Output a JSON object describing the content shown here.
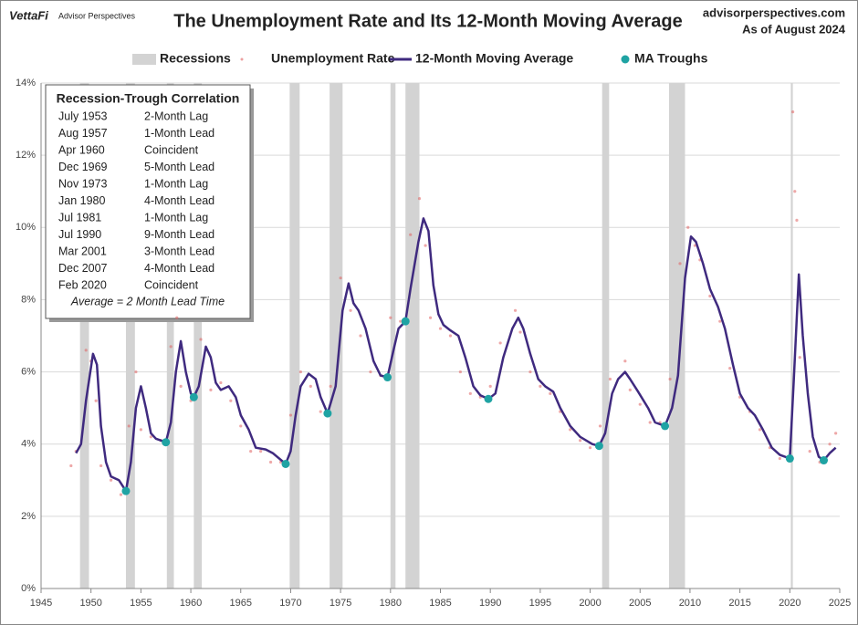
{
  "header": {
    "logo": "VettaFi",
    "logo_sub": "Advisor Perspectives",
    "site": "advisorperspectives.com",
    "date": "As of August 2024"
  },
  "chart_data": {
    "type": "line",
    "title": "The Unemployment Rate and Its 12-Month Moving Average",
    "xlim": [
      1945,
      2025
    ],
    "ylim": [
      0,
      14
    ],
    "xticks": [
      1945,
      1950,
      1955,
      1960,
      1965,
      1970,
      1975,
      1980,
      1985,
      1990,
      1995,
      2000,
      2005,
      2010,
      2015,
      2020,
      2025
    ],
    "yticks": [
      {
        "value": 0,
        "label": "0%"
      },
      {
        "value": 2,
        "label": "2%"
      },
      {
        "value": 4,
        "label": "4%"
      },
      {
        "value": 6,
        "label": "6%"
      },
      {
        "value": 8,
        "label": "8%"
      },
      {
        "value": 10,
        "label": "10%"
      },
      {
        "value": 12,
        "label": "12%"
      },
      {
        "value": 14,
        "label": "14%"
      }
    ],
    "grid": true,
    "recessions": {
      "name": "Recessions",
      "color": "#d3d3d3",
      "ranges": [
        [
          1948.9,
          1949.8
        ],
        [
          1953.5,
          1954.4
        ],
        [
          1957.6,
          1958.3
        ],
        [
          1960.3,
          1961.1
        ],
        [
          1969.9,
          1970.9
        ],
        [
          1973.9,
          1975.2
        ],
        [
          1980.0,
          1980.5
        ],
        [
          1981.5,
          1982.9
        ],
        [
          2001.2,
          2001.9
        ],
        [
          2007.9,
          2009.5
        ],
        [
          2020.1,
          2020.3
        ]
      ]
    },
    "series": [
      {
        "name": "Unemployment Rate",
        "color": "#e06060",
        "style": "dots",
        "x": [
          1948,
          1948.5,
          1949.5,
          1950,
          1950.5,
          1951,
          1952,
          1953,
          1953.8,
          1954.5,
          1955,
          1956,
          1957,
          1958,
          1958.6,
          1959,
          1960,
          1961,
          1962,
          1963,
          1964,
          1965,
          1966,
          1967,
          1968,
          1969,
          1970,
          1971,
          1972,
          1973,
          1974,
          1975,
          1976,
          1977,
          1978,
          1979,
          1980,
          1981,
          1982,
          1982.9,
          1983.5,
          1984,
          1985,
          1986,
          1987,
          1988,
          1989,
          1990,
          1991,
          1992.5,
          1993,
          1994,
          1995,
          1996,
          1997,
          1998,
          1999,
          2000,
          2001,
          2002,
          2003.5,
          2004,
          2005,
          2006,
          2007,
          2008,
          2009,
          2009.8,
          2010.5,
          2011,
          2012,
          2013,
          2014,
          2015,
          2016,
          2017,
          2018,
          2019,
          2020.3,
          2020.5,
          2020.7,
          2021,
          2022,
          2023,
          2024,
          2024.6
        ],
        "values": [
          3.4,
          3.8,
          6.6,
          6.3,
          5.2,
          3.4,
          3.0,
          2.6,
          4.5,
          6.0,
          4.4,
          4.2,
          4.1,
          6.7,
          7.5,
          5.6,
          5.2,
          6.9,
          5.5,
          5.7,
          5.2,
          4.5,
          3.8,
          3.8,
          3.5,
          3.5,
          4.8,
          6.0,
          5.6,
          4.9,
          5.6,
          8.6,
          7.7,
          7.0,
          6.0,
          5.9,
          7.5,
          7.4,
          9.8,
          10.8,
          9.5,
          7.5,
          7.2,
          7.0,
          6.0,
          5.4,
          5.3,
          5.6,
          6.8,
          7.7,
          7.1,
          6.0,
          5.6,
          5.4,
          4.9,
          4.4,
          4.1,
          3.9,
          4.5,
          5.8,
          6.3,
          5.5,
          5.1,
          4.6,
          4.6,
          5.8,
          9.0,
          10.0,
          9.5,
          9.1,
          8.1,
          7.4,
          6.1,
          5.3,
          4.9,
          4.4,
          3.9,
          3.6,
          13.2,
          11.0,
          10.2,
          6.4,
          3.8,
          3.5,
          4.0,
          4.3
        ]
      },
      {
        "name": "12-Month Moving Average",
        "color": "#3f2a7f",
        "style": "line",
        "x": [
          1948.5,
          1949,
          1949.5,
          1950.2,
          1950.6,
          1951,
          1951.5,
          1952,
          1952.8,
          1953.5,
          1954,
          1954.5,
          1955,
          1955.5,
          1956,
          1956.5,
          1957.5,
          1958,
          1958.5,
          1959,
          1959.5,
          1960,
          1960.3,
          1960.8,
          1961.5,
          1962,
          1962.5,
          1963,
          1963.8,
          1964.5,
          1965,
          1965.8,
          1966.5,
          1967.5,
          1968.2,
          1969.5,
          1970,
          1970.5,
          1971,
          1971.8,
          1972.5,
          1973,
          1973.7,
          1974.5,
          1975.2,
          1975.8,
          1976.3,
          1976.8,
          1977.5,
          1978.3,
          1979,
          1979.7,
          1980.3,
          1980.8,
          1981.5,
          1982,
          1982.8,
          1983.3,
          1983.8,
          1984.3,
          1984.8,
          1985.3,
          1986,
          1986.8,
          1987.5,
          1988.3,
          1989,
          1989.8,
          1990.5,
          1991.3,
          1992.2,
          1992.8,
          1993.3,
          1994,
          1994.8,
          1995.5,
          1996.3,
          1997,
          1998,
          1999,
          2000.2,
          2000.9,
          2001.5,
          2002.2,
          2002.8,
          2003.5,
          2004,
          2004.8,
          2005.8,
          2006.5,
          2007.5,
          2008.2,
          2008.8,
          2009.5,
          2010.1,
          2010.6,
          2011.3,
          2012,
          2012.8,
          2013.5,
          2014.3,
          2015,
          2015.8,
          2016.5,
          2017.3,
          2018.2,
          2019,
          2020,
          2020.4,
          2020.9,
          2021.3,
          2021.8,
          2022.3,
          2022.9,
          2023.4,
          2024,
          2024.6
        ],
        "values": [
          3.75,
          4.0,
          5.2,
          6.5,
          6.2,
          4.5,
          3.5,
          3.1,
          3.0,
          2.7,
          3.5,
          5.0,
          5.6,
          5.0,
          4.3,
          4.15,
          4.05,
          4.6,
          6.0,
          6.85,
          6.0,
          5.4,
          5.3,
          5.6,
          6.7,
          6.4,
          5.7,
          5.5,
          5.6,
          5.3,
          4.8,
          4.4,
          3.9,
          3.85,
          3.75,
          3.45,
          3.8,
          4.8,
          5.6,
          5.95,
          5.8,
          5.3,
          4.85,
          5.6,
          7.7,
          8.45,
          7.9,
          7.7,
          7.2,
          6.3,
          5.9,
          5.85,
          6.6,
          7.2,
          7.4,
          8.3,
          9.6,
          10.25,
          9.9,
          8.4,
          7.6,
          7.3,
          7.15,
          7.0,
          6.4,
          5.6,
          5.35,
          5.25,
          5.4,
          6.4,
          7.2,
          7.5,
          7.2,
          6.5,
          5.8,
          5.6,
          5.45,
          5.0,
          4.5,
          4.2,
          4.0,
          3.95,
          4.3,
          5.4,
          5.8,
          6.0,
          5.8,
          5.45,
          5.0,
          4.6,
          4.5,
          5.0,
          5.9,
          8.6,
          9.75,
          9.6,
          9.0,
          8.3,
          7.8,
          7.2,
          6.2,
          5.4,
          5.0,
          4.8,
          4.4,
          3.9,
          3.7,
          3.6,
          5.8,
          8.7,
          7.0,
          5.4,
          4.2,
          3.65,
          3.55,
          3.75,
          3.9
        ]
      },
      {
        "name": "MA Troughs",
        "color": "#1fa3a3",
        "style": "points",
        "x": [
          1953.5,
          1957.5,
          1960.3,
          1969.5,
          1973.7,
          1979.7,
          1981.5,
          1989.8,
          2000.9,
          2007.5,
          2020,
          2023.4
        ],
        "values": [
          2.7,
          4.05,
          5.3,
          3.45,
          4.85,
          5.85,
          7.4,
          5.25,
          3.95,
          4.5,
          3.6,
          3.55
        ]
      }
    ],
    "annotation": {
      "title": "Recession-Trough Correlation",
      "rows": [
        [
          "July 1953",
          "2-Month Lag"
        ],
        [
          "Aug 1957",
          "1-Month Lead"
        ],
        [
          "Apr 1960",
          "Coincident"
        ],
        [
          "Dec 1969",
          "5-Month Lead"
        ],
        [
          "Nov 1973",
          "1-Month Lag"
        ],
        [
          "Jan 1980",
          "4-Month Lead"
        ],
        [
          "Jul 1981",
          "1-Month Lag"
        ],
        [
          "Jul 1990",
          "9-Month Lead"
        ],
        [
          "Mar 2001",
          "3-Month Lead"
        ],
        [
          "Dec 2007",
          "4-Month Lead"
        ],
        [
          "Feb 2020",
          "Coincident"
        ]
      ],
      "footer": "Average = 2 Month Lead Time"
    }
  }
}
